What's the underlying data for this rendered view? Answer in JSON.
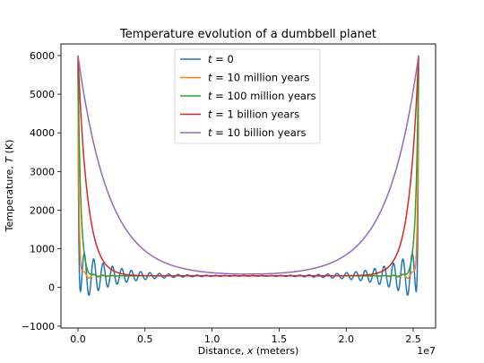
{
  "chart_data": {
    "type": "line",
    "title": "Temperature evolution of a dumbbell planet",
    "xlabel": {
      "prefix": "Distance, ",
      "var": "x",
      "suffix": " (meters)"
    },
    "ylabel": {
      "prefix": "Temperature, ",
      "var": "T",
      "suffix": " (K)"
    },
    "x_offset_label": "1e7",
    "xlim": [
      -1270000,
      26670000
    ],
    "ylim": [
      -1050,
      6300
    ],
    "x_ticks": [
      0,
      5000000,
      10000000,
      15000000,
      20000000,
      25000000
    ],
    "x_tick_labels": [
      "0.0",
      "0.5",
      "1.0",
      "1.5",
      "2.0",
      "2.5"
    ],
    "y_ticks": [
      -1000,
      0,
      1000,
      2000,
      3000,
      4000,
      5000,
      6000
    ],
    "y_tick_labels": [
      "−1000",
      "0",
      "1000",
      "2000",
      "3000",
      "4000",
      "5000",
      "6000"
    ],
    "x_domain": [
      0,
      25400000
    ],
    "base_temperature": 300,
    "peak_temperature": 6000,
    "legend_position": "upper-center",
    "grid": false,
    "series": [
      {
        "name_var": "t",
        "name_rest": " = 0",
        "color": "#1f77b4",
        "profile": "ringing",
        "decay": 50000,
        "amp": 700,
        "period": 700000,
        "ring_decay": 2500000
      },
      {
        "name_var": "t",
        "name_rest": " = 10 million years",
        "color": "#ff7f0e",
        "profile": "ringing",
        "decay": 80000,
        "amp": 150,
        "period": 700000,
        "ring_decay": 900000
      },
      {
        "name_var": "t",
        "name_rest": " = 100 million years",
        "color": "#2ca02c",
        "profile": "ringing",
        "decay": 200000,
        "amp": 60,
        "period": 700000,
        "ring_decay": 900000
      },
      {
        "name_var": "t",
        "name_rest": " = 1 billion years",
        "color": "#d62728",
        "profile": "smooth",
        "decay": 700000
      },
      {
        "name_var": "t",
        "name_rest": " = 10 billion years",
        "color": "#9467bd",
        "profile": "smooth",
        "decay": 2300000
      }
    ]
  }
}
